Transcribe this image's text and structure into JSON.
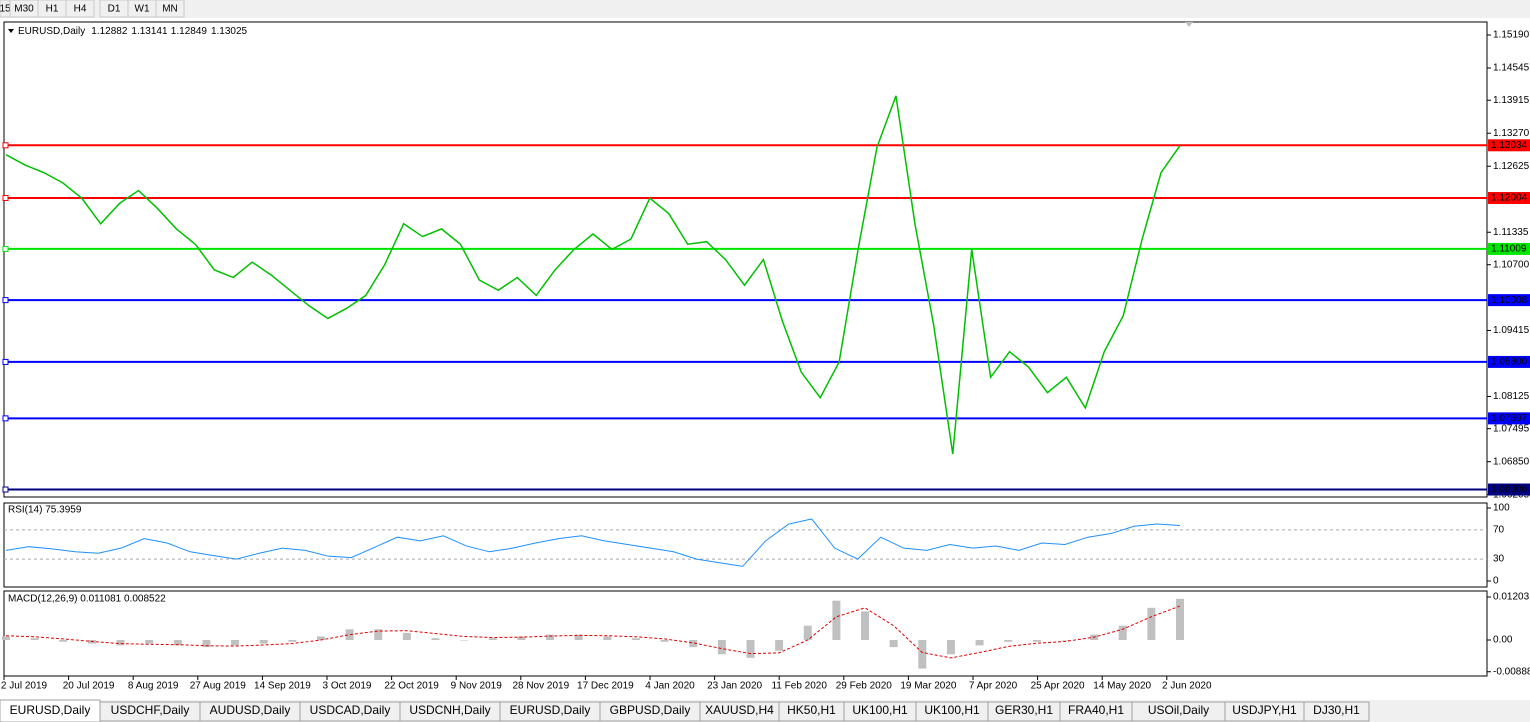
{
  "toolbar": {
    "buttons": [
      "15",
      "M30",
      "H1",
      "H4",
      "D1",
      "W1",
      "MN"
    ]
  },
  "header": {
    "symbol": "EURUSD,Daily",
    "open": 1.12882,
    "high": 1.13141,
    "low": 1.12849,
    "close": 1.13025
  },
  "price_panel": {
    "ylim": [
      1.0616,
      1.15444
    ],
    "yticks": [
      1.1519,
      1.14545,
      1.13915,
      1.1327,
      1.12625,
      1.11335,
      1.107,
      1.09415,
      1.08125,
      1.07495,
      1.0685,
      1.06205
    ],
    "ytick_labels": [
      "1.15190",
      "1.14545",
      "1.13915",
      "1.13270",
      "1.12625",
      "1.11335",
      "1.10700",
      "1.09415",
      "1.08125",
      "1.07495",
      "1.06850",
      "1.06205"
    ],
    "levels": [
      {
        "value": 1.13034,
        "color": "#ff0000"
      },
      {
        "value": 1.12004,
        "color": "#ff0000"
      },
      {
        "value": 1.11009,
        "color": "#00e600"
      },
      {
        "value": 1.10008,
        "color": "#0000ff"
      },
      {
        "value": {
          "value": 1.088,
          "label": "1.08800"
        },
        "color": "#0000ff"
      },
      {
        "value": 1.07697,
        "color": "#0000ff"
      },
      {
        "value": 1.06306,
        "color": "#000080"
      }
    ],
    "close": [
      1.1285,
      1.1265,
      1.125,
      1.123,
      1.12,
      1.115,
      1.119,
      1.1215,
      1.118,
      1.114,
      1.111,
      1.106,
      1.1045,
      1.1075,
      1.105,
      1.102,
      1.099,
      1.0965,
      1.0985,
      1.101,
      1.107,
      1.115,
      1.1125,
      1.114,
      1.111,
      1.104,
      1.102,
      1.1045,
      1.101,
      1.106,
      1.11,
      1.113,
      1.11,
      1.112,
      1.12,
      1.117,
      1.111,
      1.1115,
      1.108,
      1.103,
      1.108,
      1.096,
      1.086,
      1.081,
      1.088,
      1.11,
      1.13,
      1.14,
      1.115,
      1.095,
      1.07,
      1.11,
      1.085,
      1.09,
      1.087,
      1.082,
      1.085,
      1.079,
      1.09,
      1.097,
      1.112,
      1.125,
      1.1303
    ]
  },
  "rsi": {
    "label": "RSI(14) 75.3959",
    "ylim": [
      0,
      100
    ],
    "yticks": [
      100,
      70,
      30,
      0
    ],
    "values": [
      42,
      47,
      44,
      40,
      38,
      45,
      58,
      52,
      40,
      35,
      30,
      38,
      45,
      42,
      34,
      32,
      46,
      60,
      55,
      62,
      48,
      40,
      45,
      52,
      58,
      62,
      55,
      50,
      45,
      40,
      30,
      25,
      20,
      55,
      78,
      85,
      45,
      30,
      60,
      45,
      42,
      50,
      45,
      48,
      42,
      52,
      50,
      60,
      65,
      75,
      78,
      76
    ]
  },
  "macd": {
    "label": "MACD(12,26,9) 0.011081 0.008522",
    "ylim": [
      -0.01007,
      0.01371
    ],
    "yticks": [
      0.012031,
      {
        "value": 0,
        "label": "0.00"
      },
      -0.008881
    ],
    "main": [
      0.001,
      0.0005,
      -0.0005,
      -0.001,
      -0.0015,
      -0.001,
      -0.0015,
      -0.002,
      -0.0015,
      -0.001,
      -0.0005,
      0.001,
      0.003,
      0.003,
      0.002,
      0.0005,
      0,
      0.0005,
      0.001,
      0.0015,
      0.0015,
      0.001,
      0.0005,
      -0.0005,
      -0.002,
      -0.004,
      -0.005,
      -0.003,
      0.004,
      0.011,
      0.008,
      -0.002,
      -0.008,
      -0.004,
      -0.0015,
      -0.0005,
      -0.0005,
      0,
      0.0015,
      0.004,
      0.009,
      0.0115
    ],
    "signal": [
      0.0012,
      0.0009,
      0.0003,
      -0.0004,
      -0.001,
      -0.0012,
      -0.0013,
      -0.0016,
      -0.0017,
      -0.0014,
      -0.001,
      0,
      0.0015,
      0.0025,
      0.0026,
      0.0018,
      0.001,
      0.0007,
      0.0008,
      0.0011,
      0.0013,
      0.0012,
      0.0009,
      0.0003,
      -0.0008,
      -0.0024,
      -0.0038,
      -0.0036,
      0,
      0.0065,
      0.009,
      0.004,
      -0.0035,
      -0.005,
      -0.0035,
      -0.0018,
      -0.0009,
      -0.0004,
      0.0008,
      0.003,
      0.0065,
      0.0095
    ]
  },
  "dates": [
    "2 Jul 2019",
    "20 Jul 2019",
    "8 Aug 2019",
    "27 Aug 2019",
    "14 Sep 2019",
    "3 Oct 2019",
    "22 Oct 2019",
    "9 Nov 2019",
    "28 Nov 2019",
    "17 Dec 2019",
    "4 Jan 2020",
    "23 Jan 2020",
    "11 Feb 2020",
    "29 Feb 2020",
    "19 Mar 2020",
    "7 Apr 2020",
    "25 Apr 2020",
    "14 May 2020",
    "2 Jun 2020"
  ],
  "tabs": [
    "EURUSD,Daily",
    "USDCHF,Daily",
    "AUDUSD,Daily",
    "USDCAD,Daily",
    "USDCNH,Daily",
    "EURUSD,Daily",
    "GBPUSD,Daily",
    "XAUUSD,H4",
    "HK50,H1",
    "UK100,H1",
    "UK100,H1",
    "GER30,H1",
    "FRA40,H1",
    "USOil,Daily",
    "USDJPY,H1",
    "DJ30,H1"
  ]
}
